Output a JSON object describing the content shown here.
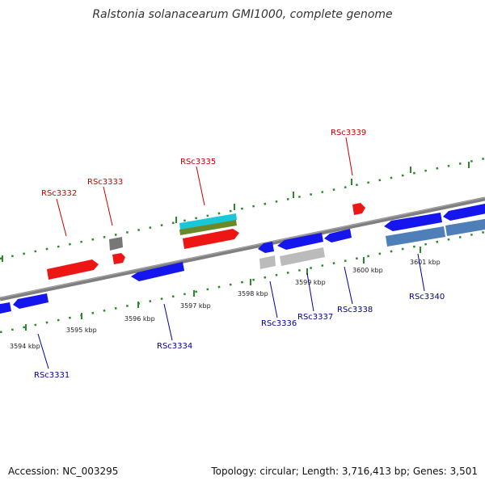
{
  "title": "Ralstonia solanacearum GMI1000, complete genome",
  "footer": {
    "accession_label": "Accession: NC_003295",
    "summary": "Topology: circular; Length: 3,716,413 bp; Genes: 3,501"
  },
  "ticks": [
    "3594 kbp",
    "3595 kbp",
    "3596 kbp",
    "3597 kbp",
    "3598 kbp",
    "3599 kbp",
    "3600 kbp",
    "3601 kbp"
  ],
  "genes": [
    {
      "id": "RSc3331",
      "strand": "minus",
      "color": "#1515ee"
    },
    {
      "id": "RSc3332",
      "strand": "plus",
      "color": "#ee1515"
    },
    {
      "id": "RSc3333",
      "strand": "plus",
      "color": "#ee1515"
    },
    {
      "id": "RSc3334",
      "strand": "minus",
      "color": "#1515ee"
    },
    {
      "id": "RSc3335",
      "strand": "plus",
      "color": "#ee1515"
    },
    {
      "id": "RSc3336",
      "strand": "minus",
      "color": "#1515ee"
    },
    {
      "id": "RSc3337",
      "strand": "minus",
      "color": "#1515ee"
    },
    {
      "id": "RSc3338",
      "strand": "minus",
      "color": "#1515ee"
    },
    {
      "id": "RSc3339",
      "strand": "plus",
      "color": "#ee1515"
    },
    {
      "id": "RSc3340",
      "strand": "minus",
      "color": "#1515ee"
    }
  ],
  "colors": {
    "plus_label": "#cc0000",
    "minus_label": "#000099",
    "backbone": "#808080",
    "tick_green": "#2a8a2a"
  }
}
